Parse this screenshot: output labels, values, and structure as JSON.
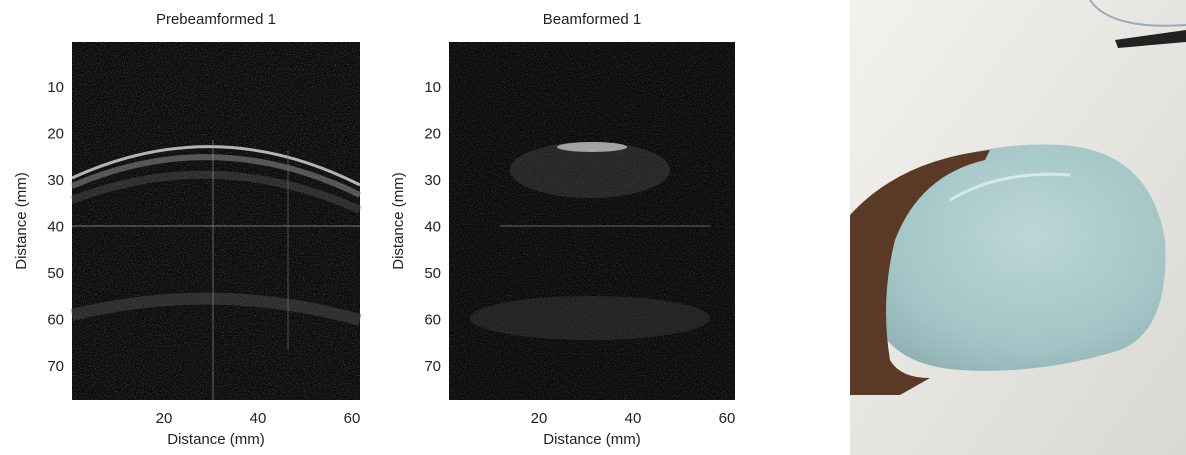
{
  "panels": [
    {
      "title": "Prebeamformed 1",
      "xlabel": "Distance (mm)",
      "ylabel": "Distance (mm)",
      "xticks": [
        20,
        40,
        60
      ],
      "yticks": [
        10,
        20,
        30,
        40,
        50,
        60,
        70
      ]
    },
    {
      "title": "Beamformed 1",
      "xlabel": "Distance (mm)",
      "ylabel": "Distance (mm)",
      "xticks": [
        20,
        40,
        60
      ],
      "yticks": [
        10,
        20,
        30,
        40,
        50,
        60,
        70
      ]
    }
  ]
}
